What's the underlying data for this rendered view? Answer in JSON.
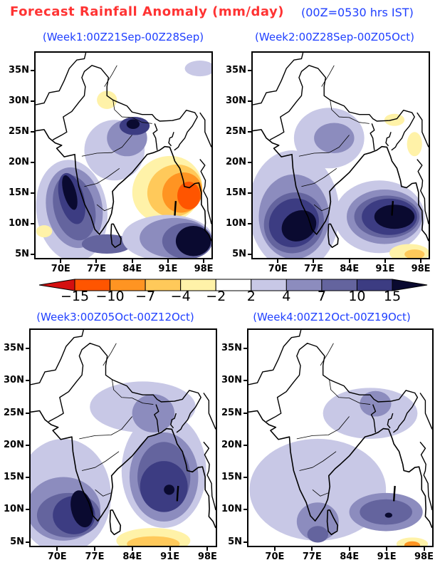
{
  "title": {
    "main": "Forecast Rainfall Anomaly (mm/day)",
    "note": "(00Z=0530 hrs IST)"
  },
  "chart_data": {
    "type": "filled-contour map",
    "units": "mm/day",
    "lon_range": [
      64.8,
      99.8
    ],
    "lat_range": [
      4.2,
      38.1
    ],
    "lon_ticks": [
      {
        "value": 70,
        "label": "70E"
      },
      {
        "value": 77,
        "label": "77E"
      },
      {
        "value": 84,
        "label": "84E"
      },
      {
        "value": 91,
        "label": "91E"
      },
      {
        "value": 98,
        "label": "98E"
      }
    ],
    "lat_ticks": [
      {
        "value": 35,
        "label": "35N"
      },
      {
        "value": 30,
        "label": "30N"
      },
      {
        "value": 25,
        "label": "25N"
      },
      {
        "value": 20,
        "label": "20N"
      },
      {
        "value": 15,
        "label": "15N"
      },
      {
        "value": 10,
        "label": "10N"
      },
      {
        "value": 5,
        "label": "5N"
      }
    ],
    "colorbar": {
      "levels": [
        -15,
        -10,
        -7,
        -4,
        -2,
        2,
        4,
        7,
        10,
        15
      ],
      "labels": [
        "−15",
        "−10",
        "−7",
        "−4",
        "−2",
        "2",
        "4",
        "7",
        "10",
        "15"
      ],
      "colors": [
        "#d41010",
        "#ff5500",
        "#ff9422",
        "#ffc95a",
        "#fff2a8",
        "#ffffff",
        "#c8c8e6",
        "#8c8cbe",
        "#64649e",
        "#3c3c82",
        "#0a0a30"
      ]
    },
    "panels": [
      {
        "title": "(Week1:00Z21Sep-00Z28Sep)",
        "anomaly_regions": [
          {
            "lon": 72,
            "lat": 12,
            "rx": 7,
            "ry": 8.5,
            "rot": -15,
            "class": 6
          },
          {
            "lon": 72.5,
            "lat": 12.5,
            "rx": 5.5,
            "ry": 6.8,
            "rot": -20,
            "class": 7
          },
          {
            "lon": 72.5,
            "lat": 12.5,
            "rx": 4,
            "ry": 5.6,
            "rot": -22,
            "class": 8
          },
          {
            "lon": 72,
            "lat": 14,
            "rx": 2.4,
            "ry": 4.4,
            "rot": -20,
            "class": 9
          },
          {
            "lon": 71.6,
            "lat": 15,
            "rx": 1.2,
            "ry": 3,
            "rot": -20,
            "class": 10
          },
          {
            "lon": 79,
            "lat": 6.5,
            "rx": 5,
            "ry": 1.6,
            "rot": 0,
            "class": 8
          },
          {
            "lon": 80.5,
            "lat": 22,
            "rx": 6,
            "ry": 5,
            "rot": 0,
            "class": 6
          },
          {
            "lon": 83,
            "lat": 24,
            "rx": 4,
            "ry": 3,
            "rot": 0,
            "class": 7
          },
          {
            "lon": 84.5,
            "lat": 26,
            "rx": 3,
            "ry": 1.5,
            "rot": 0,
            "class": 9
          },
          {
            "lon": 84.2,
            "lat": 26.3,
            "rx": 1.3,
            "ry": 0.8,
            "rot": 0,
            "class": 10
          },
          {
            "lon": 91,
            "lat": 15.5,
            "rx": 7,
            "ry": 5.5,
            "rot": -10,
            "class": 4
          },
          {
            "lon": 92.5,
            "lat": 15.3,
            "rx": 5.5,
            "ry": 4.3,
            "rot": -10,
            "class": 3
          },
          {
            "lon": 94,
            "lat": 15,
            "rx": 4,
            "ry": 3.3,
            "rot": -10,
            "class": 2
          },
          {
            "lon": 95.3,
            "lat": 14.5,
            "rx": 2.3,
            "ry": 2.3,
            "rot": 0,
            "class": 1
          },
          {
            "lon": 91,
            "lat": 7.5,
            "rx": 9,
            "ry": 3.8,
            "rot": 0,
            "class": 6
          },
          {
            "lon": 92.5,
            "lat": 7.5,
            "rx": 7,
            "ry": 3.3,
            "rot": 0,
            "class": 7
          },
          {
            "lon": 95,
            "lat": 7,
            "rx": 5,
            "ry": 3,
            "rot": 0,
            "class": 8
          },
          {
            "lon": 96.2,
            "lat": 7,
            "rx": 3.5,
            "ry": 2.5,
            "rot": 0,
            "class": 10
          },
          {
            "lon": 79,
            "lat": 30.3,
            "rx": 2,
            "ry": 1.5,
            "rot": 0,
            "class": 4
          },
          {
            "lon": 97.5,
            "lat": 35.5,
            "rx": 3,
            "ry": 1.3,
            "rot": 0,
            "class": 6
          },
          {
            "lon": 66.5,
            "lat": 8.6,
            "rx": 1.6,
            "ry": 1,
            "rot": 0,
            "class": 4
          }
        ]
      },
      {
        "title": "(Week2:00Z28Sep-00Z05Oct)",
        "anomaly_regions": [
          {
            "lon": 73,
            "lat": 12,
            "rx": 9,
            "ry": 10,
            "rot": -10,
            "class": 6
          },
          {
            "lon": 73,
            "lat": 11,
            "rx": 7,
            "ry": 7,
            "rot": -10,
            "class": 7
          },
          {
            "lon": 73,
            "lat": 10,
            "rx": 6,
            "ry": 5,
            "rot": -10,
            "class": 8
          },
          {
            "lon": 73,
            "lat": 10,
            "rx": 5,
            "ry": 4,
            "rot": -10,
            "class": 9
          },
          {
            "lon": 74,
            "lat": 9.5,
            "rx": 3.5,
            "ry": 2.5,
            "rot": -15,
            "class": 10
          },
          {
            "lon": 90,
            "lat": 11,
            "rx": 9,
            "ry": 6,
            "rot": 0,
            "class": 6
          },
          {
            "lon": 91,
            "lat": 11,
            "rx": 7.5,
            "ry": 4.5,
            "rot": 0,
            "class": 7
          },
          {
            "lon": 91.5,
            "lat": 11,
            "rx": 6.5,
            "ry": 3.5,
            "rot": 0,
            "class": 8
          },
          {
            "lon": 92,
            "lat": 11,
            "rx": 5.5,
            "ry": 3,
            "rot": 0,
            "class": 9
          },
          {
            "lon": 93,
            "lat": 11,
            "rx": 4,
            "ry": 2,
            "rot": 0,
            "class": 10
          },
          {
            "lon": 80,
            "lat": 24,
            "rx": 7,
            "ry": 5,
            "rot": 0,
            "class": 6
          },
          {
            "lon": 81,
            "lat": 24,
            "rx": 4,
            "ry": 2.5,
            "rot": 0,
            "class": 7
          },
          {
            "lon": 93,
            "lat": 27,
            "rx": 2,
            "ry": 1,
            "rot": 0,
            "class": 4
          },
          {
            "lon": 97,
            "lat": 23,
            "rx": 1.5,
            "ry": 2,
            "rot": 0,
            "class": 4
          },
          {
            "lon": 96,
            "lat": 5,
            "rx": 4,
            "ry": 1.5,
            "rot": 0,
            "class": 4
          },
          {
            "lon": 97,
            "lat": 4.8,
            "rx": 2,
            "ry": 0.8,
            "rot": 0,
            "class": 3
          }
        ]
      },
      {
        "title": "(Week3:00Z05Oct-00Z12Oct)",
        "anomaly_regions": [
          {
            "lon": 71,
            "lat": 12,
            "rx": 9,
            "ry": 9,
            "rot": 0,
            "class": 6
          },
          {
            "lon": 71,
            "lat": 10,
            "rx": 7,
            "ry": 5,
            "rot": 0,
            "class": 7
          },
          {
            "lon": 72,
            "lat": 9,
            "rx": 6,
            "ry": 3.5,
            "rot": 0,
            "class": 8
          },
          {
            "lon": 73,
            "lat": 9,
            "rx": 4,
            "ry": 3,
            "rot": 0,
            "class": 9
          },
          {
            "lon": 74.5,
            "lat": 10,
            "rx": 2,
            "ry": 3,
            "rot": -20,
            "class": 10
          },
          {
            "lon": 90,
            "lat": 16,
            "rx": 8,
            "ry": 9,
            "rot": 0,
            "class": 6
          },
          {
            "lon": 90,
            "lat": 15,
            "rx": 6.5,
            "ry": 7,
            "rot": 0,
            "class": 7
          },
          {
            "lon": 90,
            "lat": 15,
            "rx": 5,
            "ry": 5.5,
            "rot": 0,
            "class": 8
          },
          {
            "lon": 90,
            "lat": 13.5,
            "rx": 4.5,
            "ry": 4,
            "rot": 0,
            "class": 9
          },
          {
            "lon": 91,
            "lat": 13,
            "rx": 1,
            "ry": 0.8,
            "rot": 0,
            "class": 10
          },
          {
            "lon": 86,
            "lat": 26,
            "rx": 10,
            "ry": 4,
            "rot": 0,
            "class": 6
          },
          {
            "lon": 88,
            "lat": 25,
            "rx": 4,
            "ry": 3,
            "rot": 0,
            "class": 7
          },
          {
            "lon": 88,
            "lat": 5,
            "rx": 7,
            "ry": 2,
            "rot": 0,
            "class": 4
          },
          {
            "lon": 88,
            "lat": 4.5,
            "rx": 5,
            "ry": 1.2,
            "rot": 0,
            "class": 3
          }
        ]
      },
      {
        "title": "(Week4:00Z12Oct-00Z19Oct)",
        "anomaly_regions": [
          {
            "lon": 78,
            "lat": 13,
            "rx": 13,
            "ry": 8,
            "rot": 0,
            "class": 6
          },
          {
            "lon": 88,
            "lat": 25,
            "rx": 9,
            "ry": 4,
            "rot": 0,
            "class": 6
          },
          {
            "lon": 78,
            "lat": 8,
            "rx": 4,
            "ry": 3,
            "rot": 0,
            "class": 7
          },
          {
            "lon": 78,
            "lat": 6,
            "rx": 2,
            "ry": 1.3,
            "rot": 0,
            "class": 8
          },
          {
            "lon": 91,
            "lat": 9.5,
            "rx": 7,
            "ry": 3,
            "rot": 0,
            "class": 7
          },
          {
            "lon": 91,
            "lat": 9.5,
            "rx": 5,
            "ry": 2,
            "rot": 0,
            "class": 8
          },
          {
            "lon": 91.5,
            "lat": 9,
            "rx": 0.7,
            "ry": 0.4,
            "rot": 0,
            "class": 10
          },
          {
            "lon": 89,
            "lat": 26.5,
            "rx": 3,
            "ry": 2,
            "rot": 0,
            "class": 7
          },
          {
            "lon": 96,
            "lat": 4.5,
            "rx": 3,
            "ry": 1,
            "rot": 0,
            "class": 4
          },
          {
            "lon": 96,
            "lat": 4.3,
            "rx": 1.5,
            "ry": 0.6,
            "rot": 0,
            "class": 2
          }
        ]
      }
    ]
  }
}
